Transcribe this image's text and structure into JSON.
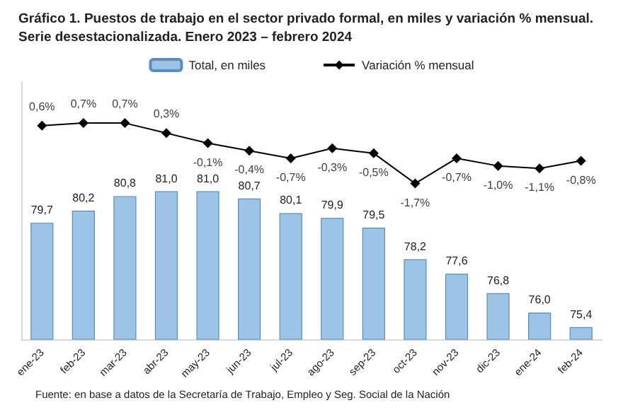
{
  "chart_data": {
    "type": "bar",
    "title": "Gráfico 1. Puestos de trabajo en el sector privado formal, en miles y variación % mensual. Serie desestacionalizada. Enero 2023 – febrero 2024",
    "categories": [
      "ene-23",
      "feb-23",
      "mar-23",
      "abr-23",
      "may-23",
      "jun-23",
      "jul-23",
      "ago-23",
      "sep-23",
      "oct-23",
      "nov-23",
      "dic-23",
      "ene-24",
      "feb-24"
    ],
    "series": [
      {
        "name": "Total, en miles",
        "color": "#9dc3e6",
        "values": [
          79.7,
          80.2,
          80.8,
          81.0,
          81.0,
          80.7,
          80.1,
          79.9,
          79.5,
          78.2,
          77.6,
          76.8,
          76.0,
          75.4
        ],
        "value_labels": [
          "79,7",
          "80,2",
          "80,8",
          "81,0",
          "81,0",
          "80,7",
          "80,1",
          "79,9",
          "79,5",
          "78,2",
          "77,6",
          "76,8",
          "76,0",
          "75,4"
        ]
      },
      {
        "name": "Variación % mensual",
        "type": "line",
        "axis": "y2",
        "color": "#000000",
        "marker": "diamond",
        "values": [
          0.6,
          0.7,
          0.7,
          0.3,
          -0.1,
          -0.4,
          -0.7,
          -0.3,
          -0.5,
          -1.7,
          -0.7,
          -1.0,
          -1.1,
          -0.8
        ],
        "value_labels": [
          "0,6%",
          "0,7%",
          "0,7%",
          "0,3%",
          "-0,1%",
          "-0,4%",
          "-0,7%",
          "-0,3%",
          "-0,5%",
          "-1,7%",
          "-0,7%",
          "-1,0%",
          "-1,1%",
          "-0,8%"
        ]
      }
    ],
    "ylim": [
      74.9,
      85.5
    ],
    "tick_labels": "x",
    "legend": "top",
    "grid": false,
    "annotations": [
      "Fuente: en base a datos de la Secretaría de Trabajo, Empleo y Seg. Social de la Nación"
    ]
  }
}
